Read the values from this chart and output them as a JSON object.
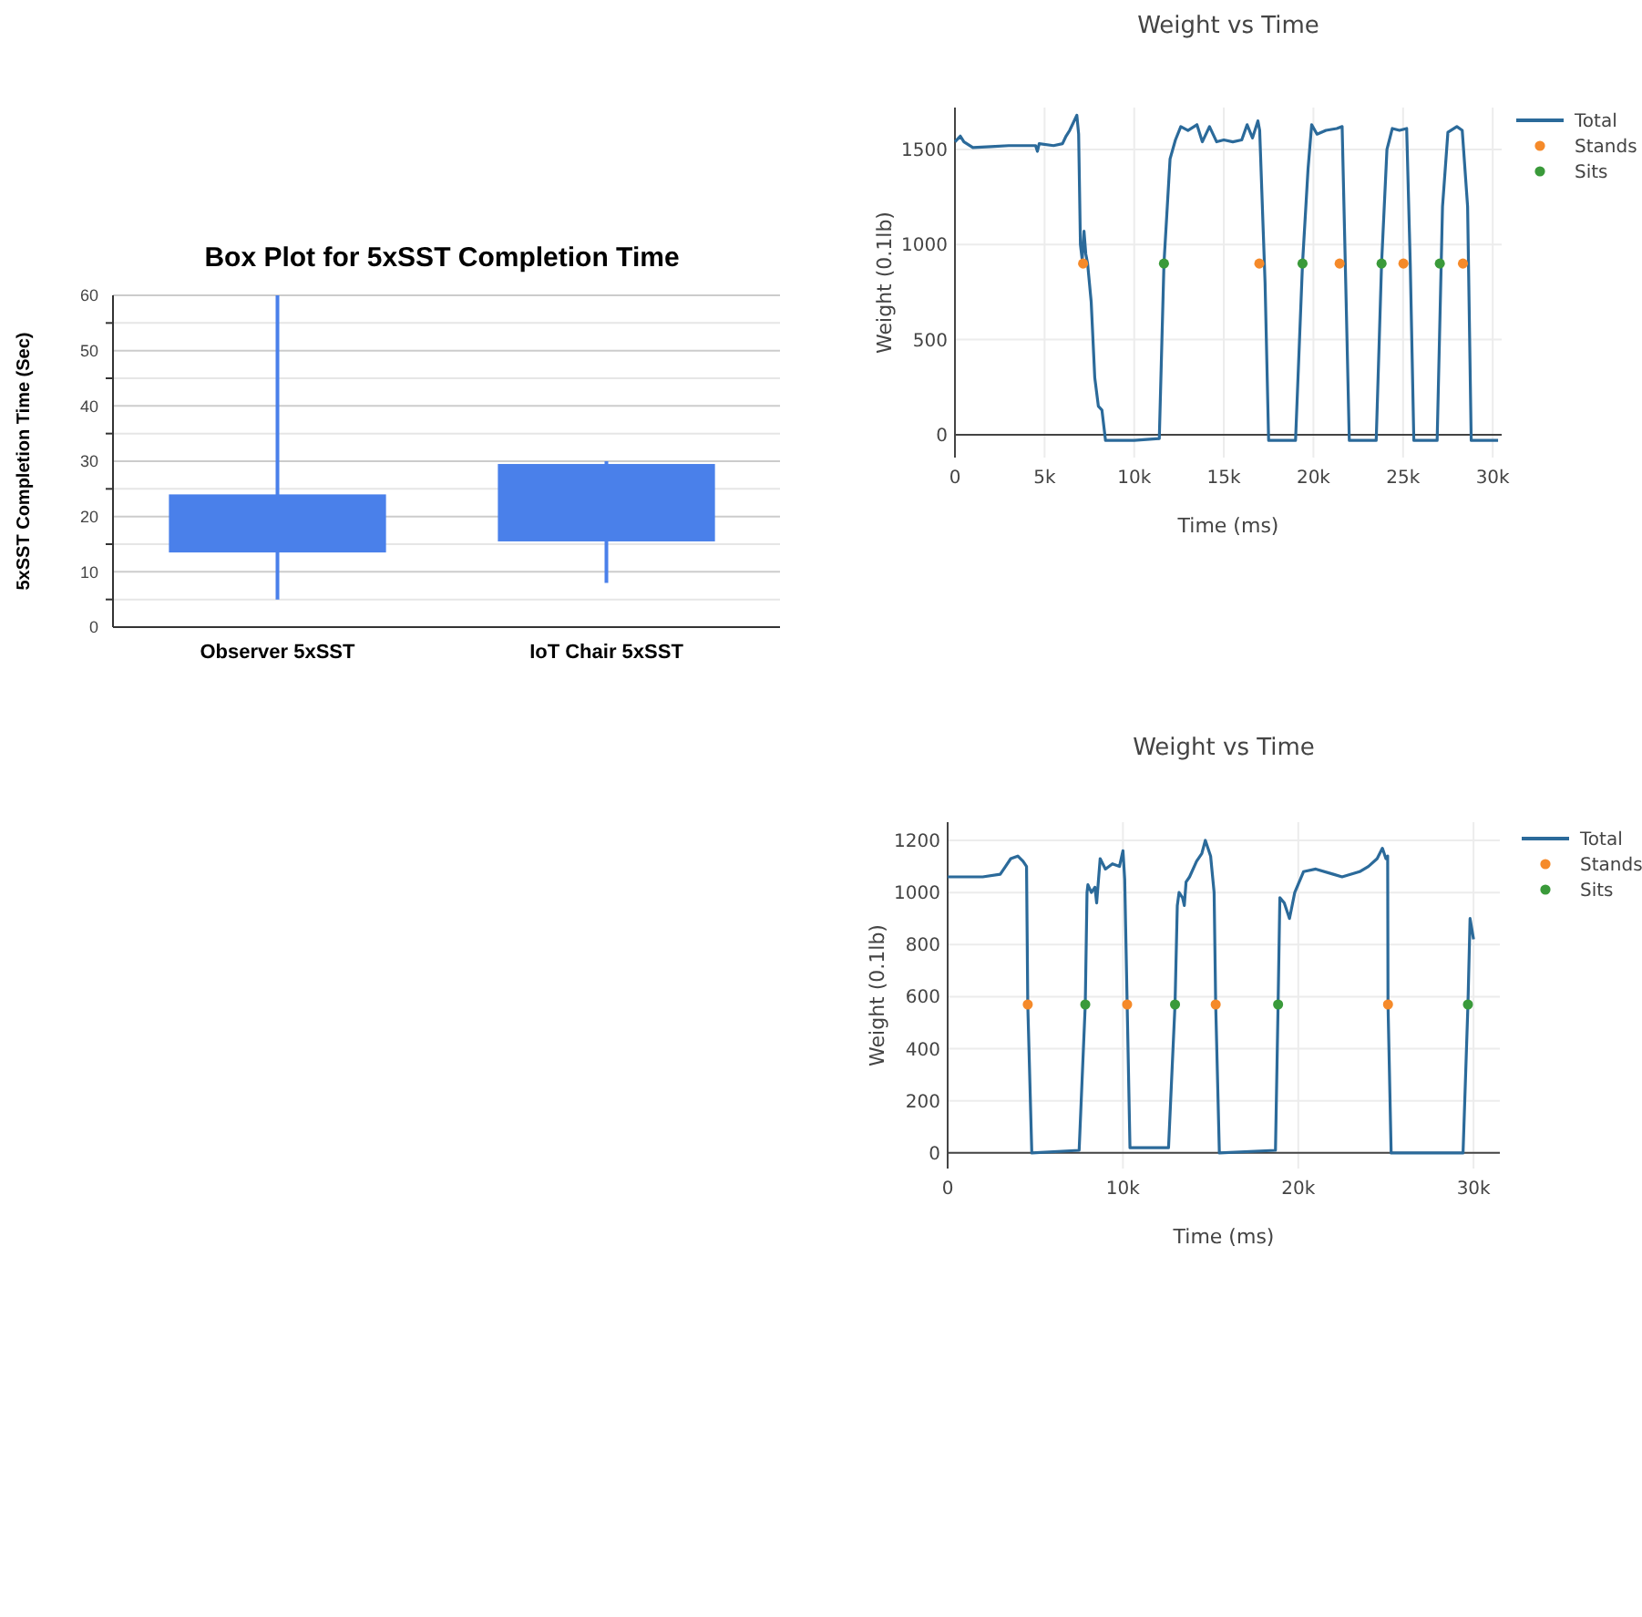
{
  "chart_data": [
    {
      "type": "box",
      "title": "Box Plot for 5xSST Completion Time",
      "ylabel": "5xSST Completion Time (Sec)",
      "categories": [
        "Observer 5xSST",
        "IoT Chair 5xSST"
      ],
      "color": "#4a80ea",
      "ylim": [
        0,
        60
      ],
      "yticks": [
        0,
        {
          "value": 5,
          "label": null
        },
        10,
        {
          "value": 15,
          "label": null
        },
        20,
        {
          "value": 25,
          "label": null
        },
        30,
        {
          "value": 35,
          "label": null
        },
        40,
        {
          "value": 45,
          "label": null
        },
        50,
        {
          "value": 55,
          "label": null
        },
        60
      ],
      "grid": true,
      "boxes": [
        {
          "low": 5,
          "q1": 13.5,
          "q3": 24,
          "high": 60
        },
        {
          "low": 8,
          "q1": 15.5,
          "q3": 29.5,
          "high": 30
        }
      ]
    },
    {
      "type": "line",
      "title": "Weight vs Time",
      "xlabel": "Time (ms)",
      "ylabel": "Weight (0.1lb)",
      "xlim": [
        0,
        30500
      ],
      "xticks": [
        0,
        {
          "value": 5000,
          "label": "5k"
        },
        {
          "value": 10000,
          "label": "10k"
        },
        {
          "value": 15000,
          "label": "15k"
        },
        {
          "value": 20000,
          "label": "20k"
        },
        {
          "value": 25000,
          "label": "25k"
        },
        {
          "value": 30000,
          "label": "30k"
        }
      ],
      "ylim": [
        -120,
        1720
      ],
      "yticks": [
        0,
        500,
        1000,
        1500
      ],
      "grid": true,
      "legend": "top right",
      "series": [
        {
          "name": "Total",
          "type": "line",
          "color": "#2b6a9a",
          "x": [
            0,
            300,
            500,
            1000,
            2000,
            3000,
            4500,
            4600,
            4700,
            5500,
            6000,
            6200,
            6400,
            6600,
            6800,
            6900,
            7000,
            7100,
            7200,
            7300,
            7400,
            7600,
            7800,
            8000,
            8200,
            8400,
            10000,
            11400,
            11660,
            12000,
            12300,
            12600,
            13000,
            13500,
            13800,
            14200,
            14600,
            15000,
            15500,
            16000,
            16300,
            16600,
            16900,
            17000,
            17300,
            17500,
            19000,
            19390,
            19700,
            19900,
            20200,
            20700,
            21300,
            21600,
            21800,
            22000,
            23500,
            23800,
            24100,
            24400,
            24800,
            25200,
            25400,
            25600,
            26900,
            27200,
            27500,
            28000,
            28300,
            28600,
            28800,
            30300
          ],
          "values": [
            1540,
            1570,
            1540,
            1510,
            1515,
            1520,
            1520,
            1490,
            1530,
            1520,
            1530,
            1570,
            1600,
            1640,
            1680,
            1580,
            1000,
            920,
            1070,
            950,
            900,
            700,
            300,
            150,
            130,
            -30,
            -30,
            -20,
            900,
            1450,
            1550,
            1620,
            1600,
            1630,
            1540,
            1620,
            1540,
            1550,
            1540,
            1550,
            1630,
            1560,
            1650,
            1600,
            800,
            -30,
            -30,
            900,
            1400,
            1630,
            1580,
            1600,
            1610,
            1620,
            800,
            -30,
            -30,
            900,
            1500,
            1610,
            1600,
            1610,
            900,
            -30,
            -30,
            1200,
            1590,
            1620,
            1600,
            1200,
            -30,
            -30
          ]
        },
        {
          "name": "Stands",
          "type": "scatter",
          "marker": "circle",
          "color": "#f58a2a",
          "x": [
            7150,
            16980,
            21460,
            25020,
            28340
          ],
          "values": [
            900,
            900,
            900,
            900,
            900
          ]
        },
        {
          "name": "Sits",
          "type": "scatter",
          "marker": "circle",
          "color": "#3a9a3a",
          "x": [
            11660,
            19390,
            23800,
            27050
          ],
          "values": [
            900,
            900,
            900,
            900
          ]
        }
      ]
    },
    {
      "type": "line",
      "title": "Weight vs Time",
      "xlabel": "Time (ms)",
      "ylabel": "Weight (0.1lb)",
      "xlim": [
        0,
        31500
      ],
      "xticks": [
        0,
        {
          "value": 10000,
          "label": "10k"
        },
        {
          "value": 20000,
          "label": "20k"
        },
        {
          "value": 30000,
          "label": "30k"
        }
      ],
      "ylim": [
        -60,
        1270
      ],
      "yticks": [
        0,
        200,
        400,
        600,
        800,
        1000,
        1200
      ],
      "grid": true,
      "legend": "top right",
      "series": [
        {
          "name": "Total",
          "type": "line",
          "color": "#2b6a9a",
          "x": [
            0,
            2000,
            3000,
            3300,
            3600,
            4000,
            4300,
            4500,
            4570,
            4800,
            7500,
            7850,
            7950,
            8000,
            8200,
            8400,
            8500,
            8700,
            9000,
            9400,
            9800,
            10000,
            10100,
            10240,
            10400,
            12600,
            12970,
            13100,
            13200,
            13400,
            13500,
            13600,
            13800,
            14200,
            14500,
            14700,
            15000,
            15200,
            15290,
            15500,
            18700,
            18850,
            18950,
            19200,
            19500,
            19800,
            20300,
            21000,
            22000,
            22500,
            23500,
            24000,
            24500,
            24800,
            25000,
            25100,
            25120,
            25300,
            29400,
            29680,
            29800,
            30000
          ],
          "values": [
            1060,
            1060,
            1070,
            1100,
            1130,
            1140,
            1120,
            1100,
            570,
            0,
            10,
            570,
            1000,
            1030,
            1000,
            1020,
            960,
            1130,
            1090,
            1110,
            1100,
            1160,
            1050,
            570,
            20,
            20,
            570,
            950,
            1000,
            980,
            950,
            1040,
            1060,
            1120,
            1150,
            1200,
            1140,
            1000,
            570,
            0,
            10,
            570,
            980,
            960,
            900,
            1000,
            1080,
            1090,
            1070,
            1060,
            1080,
            1100,
            1130,
            1170,
            1130,
            1140,
            570,
            0,
            0,
            570,
            900,
            820
          ]
        },
        {
          "name": "Stands",
          "type": "scatter",
          "marker": "circle",
          "color": "#f58a2a",
          "x": [
            4570,
            10240,
            15290,
            25120
          ],
          "values": [
            570,
            570,
            570,
            570
          ]
        },
        {
          "name": "Sits",
          "type": "scatter",
          "marker": "circle",
          "color": "#3a9a3a",
          "x": [
            7850,
            12970,
            18850,
            29680
          ],
          "values": [
            570,
            570,
            570,
            570
          ]
        }
      ]
    }
  ]
}
